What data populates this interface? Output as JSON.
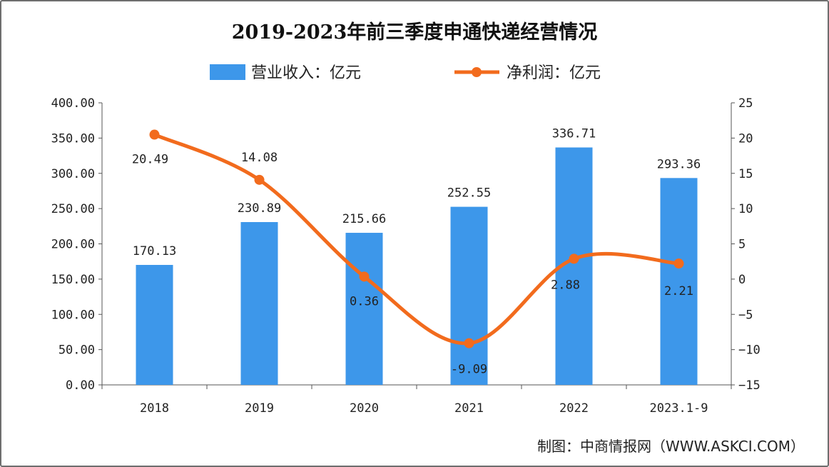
{
  "chart_data": {
    "type": "bar+line",
    "title": "2019-2023年前三季度申通快递经营情况",
    "categories": [
      "2018",
      "2019",
      "2020",
      "2021",
      "2022",
      "2023.1-9"
    ],
    "series": [
      {
        "name": "营业收入：亿元",
        "type": "bar",
        "axis": "left",
        "color": "#3d97ea",
        "values": [
          170.13,
          230.89,
          215.66,
          252.55,
          336.71,
          293.36
        ],
        "labels": [
          "170.13",
          "230.89",
          "215.66",
          "252.55",
          "336.71",
          "293.36"
        ]
      },
      {
        "name": "净利润：亿元",
        "type": "line",
        "axis": "right",
        "color": "#f26b1d",
        "values": [
          20.49,
          14.08,
          0.36,
          -9.09,
          2.88,
          2.21
        ],
        "labels": [
          "20.49",
          "14.08",
          "0.36",
          "-9.09",
          "2.88",
          "2.21"
        ]
      }
    ],
    "left_axis": {
      "ylim": [
        0,
        400
      ],
      "ticks": [
        "0.00",
        "50.00",
        "100.00",
        "150.00",
        "200.00",
        "250.00",
        "300.00",
        "350.00",
        "400.00"
      ]
    },
    "right_axis": {
      "ylim": [
        -15,
        25
      ],
      "ticks": [
        "-15",
        "-10",
        "-5",
        "0",
        "5",
        "10",
        "15",
        "20",
        "25"
      ]
    },
    "grid": false,
    "legend": "top-center",
    "source": "制图：中商情报网（WWW.ASKCI.COM）"
  }
}
